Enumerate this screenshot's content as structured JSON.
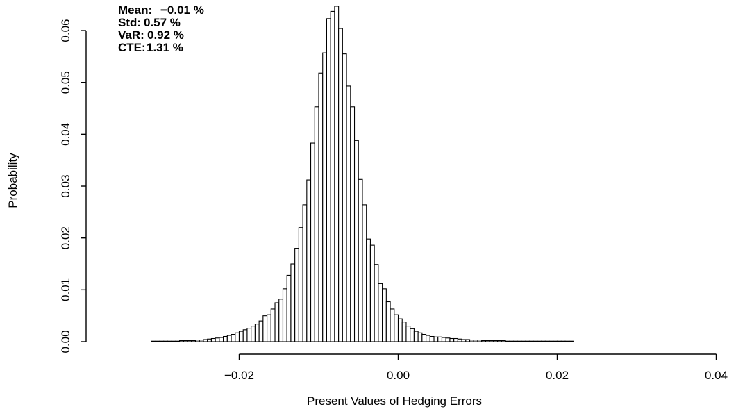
{
  "chart_data": {
    "type": "bar",
    "subtype": "histogram",
    "xlabel": "Present Values of Hedging Errors",
    "ylabel": "Probability",
    "xlim": [
      -0.04,
      0.04
    ],
    "ylim": [
      0,
      0.065
    ],
    "x_ticks": [
      -0.02,
      0.0,
      0.02,
      0.04
    ],
    "x_tick_labels": [
      "−0.02",
      "0.00",
      "0.02",
      "0.04"
    ],
    "y_ticks": [
      0.0,
      0.01,
      0.02,
      0.03,
      0.04,
      0.05,
      0.06
    ],
    "y_tick_labels": [
      "0.00",
      "0.01",
      "0.02",
      "0.03",
      "0.04",
      "0.05",
      "0.06"
    ],
    "bin_start": -0.036,
    "bin_width": 0.0005,
    "values": [
      0.0,
      0.0,
      0.0,
      0.0,
      0.0,
      0.0,
      0.0,
      0.0,
      0.0,
      0.0,
      0.0001,
      0.0001,
      0.0001,
      0.0001,
      0.0001,
      0.0001,
      0.0001,
      0.0002,
      0.0002,
      0.0002,
      0.0002,
      0.0003,
      0.0003,
      0.0004,
      0.0005,
      0.0006,
      0.0007,
      0.0008,
      0.001,
      0.0012,
      0.0014,
      0.0017,
      0.002,
      0.0023,
      0.0026,
      0.003,
      0.0034,
      0.004,
      0.005,
      0.0052,
      0.0063,
      0.0075,
      0.0082,
      0.0102,
      0.0128,
      0.015,
      0.018,
      0.022,
      0.0264,
      0.0312,
      0.0383,
      0.0453,
      0.0518,
      0.0557,
      0.0623,
      0.0637,
      0.0647,
      0.0604,
      0.0555,
      0.0493,
      0.0453,
      0.0388,
      0.0313,
      0.0264,
      0.0198,
      0.0186,
      0.0149,
      0.0112,
      0.0102,
      0.0077,
      0.0063,
      0.0052,
      0.0044,
      0.0038,
      0.003,
      0.0025,
      0.002,
      0.0017,
      0.0014,
      0.0012,
      0.001,
      0.0009,
      0.0009,
      0.0008,
      0.0007,
      0.0006,
      0.0006,
      0.0005,
      0.0004,
      0.0004,
      0.0003,
      0.0003,
      0.0003,
      0.0002,
      0.0002,
      0.0002,
      0.0002,
      0.0002,
      0.0002,
      0.0001,
      0.0001,
      0.0001,
      0.0001,
      0.0001,
      0.0001,
      0.0001,
      0.0001,
      0.0001,
      0.0001,
      0.0001,
      0.0001,
      0.0001,
      0.0001,
      0.0001,
      0.0001,
      0.0001
    ],
    "annotations": [
      {
        "label": "Mean:",
        "value": "−0.01 %"
      },
      {
        "label": "Std:",
        "value": "0.57 %"
      },
      {
        "label": "VaR:",
        "value": "0.92 %"
      },
      {
        "label": "CTE:",
        "value": "1.31 %"
      }
    ],
    "grid": false,
    "legend": "none"
  }
}
